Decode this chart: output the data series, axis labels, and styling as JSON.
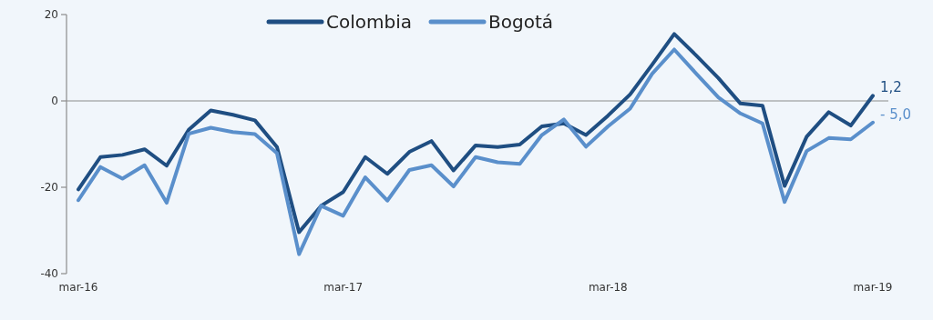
{
  "chart_data": {
    "type": "line",
    "categories": [
      "mar-16",
      null,
      null,
      null,
      null,
      null,
      null,
      null,
      null,
      null,
      null,
      null,
      "mar-17",
      null,
      null,
      null,
      null,
      null,
      null,
      null,
      null,
      null,
      null,
      null,
      "mar-18",
      null,
      null,
      null,
      null,
      null,
      null,
      null,
      null,
      null,
      null,
      null,
      "mar-19"
    ],
    "series": [
      {
        "name": "Colombia",
        "color": "#1f4e82",
        "values": [
          -20.5,
          -13,
          -12.5,
          -11.2,
          -15,
          -6.7,
          -2.2,
          -3.2,
          -4.5,
          -10.7,
          -30.4,
          -24.3,
          -21.1,
          -13,
          -16.9,
          -11.8,
          -9.3,
          -16.1,
          -10.3,
          -10.7,
          -10.1,
          -5.9,
          -5.2,
          -7.9,
          -3.4,
          1.5,
          8.4,
          15.5,
          10.5,
          5.3,
          -0.6,
          -1.1,
          -19.7,
          -8.3,
          -2.6,
          -5.7,
          1.2
        ],
        "value_labels": [
          null,
          null,
          null,
          null,
          null,
          null,
          null,
          null,
          null,
          null,
          null,
          null,
          null,
          null,
          null,
          null,
          null,
          null,
          null,
          null,
          null,
          null,
          null,
          null,
          null,
          null,
          null,
          null,
          null,
          null,
          null,
          null,
          null,
          null,
          null,
          null,
          "1,2"
        ]
      },
      {
        "name": "Bogotá",
        "color": "#5a8fcb",
        "values": [
          -23,
          -15.3,
          -18,
          -14.9,
          -23.6,
          -7.6,
          -6.2,
          -7.2,
          -7.7,
          -12.1,
          -35.5,
          -24.3,
          -26.6,
          -17.7,
          -23.1,
          -16,
          -14.9,
          -19.8,
          -13,
          -14.2,
          -14.6,
          -7.9,
          -4.3,
          -10.6,
          -5.9,
          -1.8,
          6.3,
          11.9,
          6.3,
          0.8,
          -2.9,
          -5.2,
          -23.4,
          -11.6,
          -8.6,
          -8.9,
          -5
        ],
        "value_labels": [
          null,
          null,
          null,
          null,
          null,
          null,
          null,
          null,
          null,
          null,
          null,
          null,
          null,
          null,
          null,
          null,
          null,
          null,
          null,
          null,
          null,
          null,
          null,
          null,
          null,
          null,
          null,
          null,
          null,
          null,
          null,
          null,
          null,
          null,
          null,
          null,
          "- 5,0"
        ]
      }
    ],
    "ylim": [
      -40,
      20
    ],
    "yticks": [
      -40,
      -20,
      0,
      20
    ],
    "ref_lines": [
      {
        "axis": "y",
        "value": 0,
        "color": "#8c8c8c"
      }
    ],
    "grid": false,
    "legend": "top",
    "marker": "none",
    "line_style": "solid"
  }
}
